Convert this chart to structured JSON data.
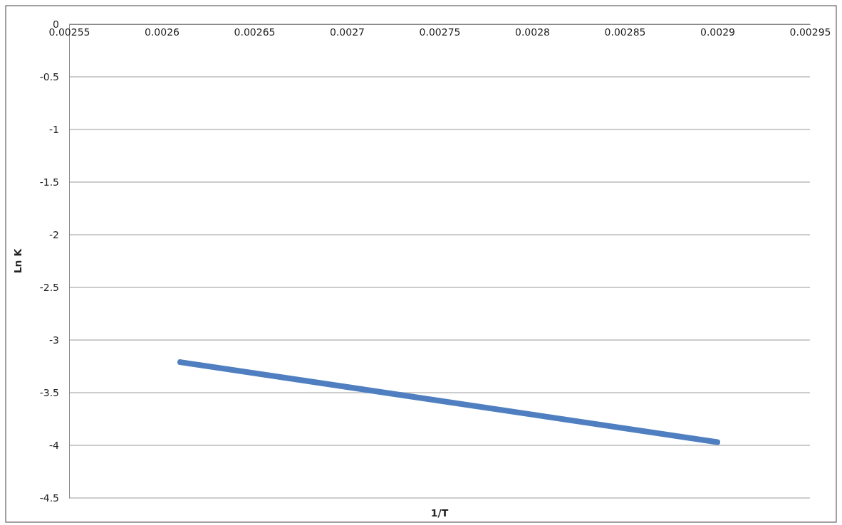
{
  "chart_data": {
    "type": "line",
    "xlabel": "1/T",
    "ylabel": "Ln K",
    "series": [
      {
        "color": "#4f7fc0",
        "x": [
          0.00261,
          0.0029
        ],
        "values": [
          -3.21,
          -3.97
        ]
      }
    ],
    "xlim": [
      0.00255,
      0.00295
    ],
    "xticks": [
      0.00255,
      0.0026,
      0.00265,
      0.0027,
      0.00275,
      0.0028,
      0.00285,
      0.0029,
      0.00295
    ],
    "ylim": [
      -4.5,
      0
    ],
    "yticks": [
      0,
      -0.5,
      -1,
      -1.5,
      -2,
      -2.5,
      -3,
      -3.5,
      -4,
      -4.5
    ],
    "grid": "y",
    "marker": "none",
    "line_style": "solid"
  }
}
